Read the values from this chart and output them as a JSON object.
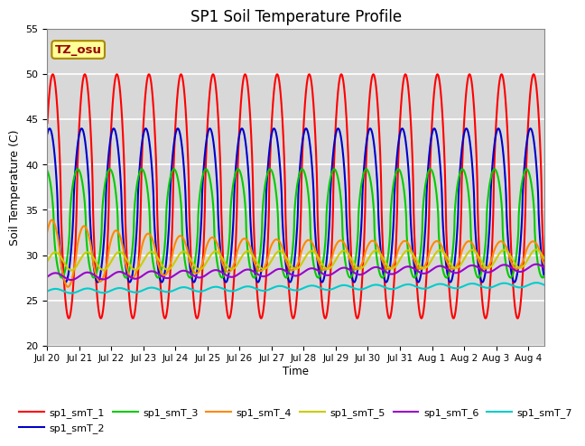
{
  "title": "SP1 Soil Temperature Profile",
  "ylabel": "Soil Temperature (C)",
  "xlabel": "Time",
  "ylim": [
    20,
    55
  ],
  "xtick_labels": [
    "Jul 20",
    "Jul 21",
    "Jul 22",
    "Jul 23",
    "Jul 24",
    "Jul 25",
    "Jul 26",
    "Jul 27",
    "Jul 28",
    "Jul 29",
    "Jul 30",
    "Jul 31",
    "Aug 1",
    "Aug 2",
    "Aug 3",
    "Aug 4"
  ],
  "ytick_labels": [
    "20",
    "25",
    "30",
    "35",
    "40",
    "45",
    "50",
    "55"
  ],
  "series_colors": [
    "#ff0000",
    "#0000cc",
    "#00cc00",
    "#ff8800",
    "#cccc00",
    "#9900cc",
    "#00cccc"
  ],
  "series_labels": [
    "sp1_smT_1",
    "sp1_smT_2",
    "sp1_smT_3",
    "sp1_smT_4",
    "sp1_smT_5",
    "sp1_smT_6",
    "sp1_smT_7"
  ],
  "annotation_text": "TZ_osu",
  "annotation_color": "#990000",
  "annotation_bg": "#ffff99",
  "bg_color": "#d8d8d8",
  "num_days": 15.5,
  "linewidth": 1.5
}
